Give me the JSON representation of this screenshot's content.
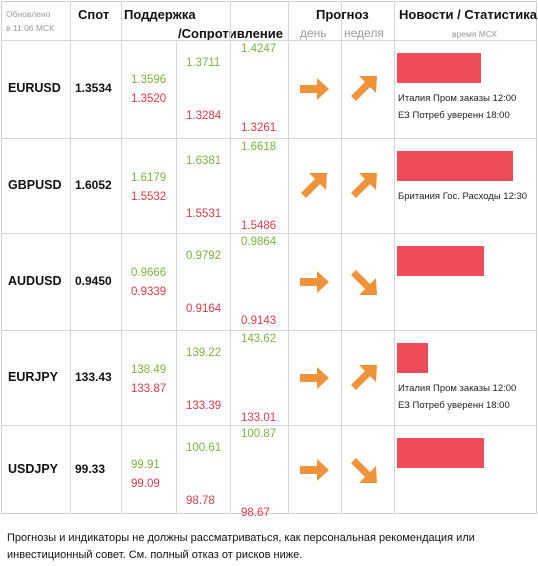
{
  "header": {
    "updated_label": "Обновлено",
    "updated_time": "в 11:06 МСК",
    "spot": "Спот",
    "support": "Поддержка",
    "resistance": "/Сопротивление",
    "forecast": "Прогноз",
    "day": "день",
    "week": "неделя",
    "news": "Новости / Статистика",
    "time_msk": "время МСК"
  },
  "colors": {
    "support": "#7cb342",
    "resistance": "#e53945",
    "arrow": "#f0923a",
    "bar": "#ef4c5a"
  },
  "rows": [
    {
      "pair": "EURUSD",
      "spot": "1.3534",
      "s1_top": "1.3596",
      "s1_bot": "1.3520",
      "s2_top": "1.3711",
      "s2_bot": "1.3284",
      "s3_top": "1.4247",
      "s3_bot": "1.3261",
      "day": "right-arrow-icon",
      "week": "up-right-arrow-icon",
      "news_level": 0.72,
      "news": [
        "Италия Пром заказы 12:00",
        "ЕЗ Потреб уверенн 18:00"
      ]
    },
    {
      "pair": "GBPUSD",
      "spot": "1.6052",
      "s1_top": "1.6179",
      "s1_bot": "1.5532",
      "s2_top": "1.6381",
      "s2_bot": "1.5531",
      "s3_top": "1.6618",
      "s3_bot": "1.5486",
      "day": "up-right-arrow-icon",
      "week": "up-right-arrow-icon",
      "news_level": 1.0,
      "news": [
        "Британия Гос. Расходы 12:30"
      ]
    },
    {
      "pair": "AUDUSD",
      "spot": "0.9450",
      "s1_top": "0.9666",
      "s1_bot": "0.9339",
      "s2_top": "0.9792",
      "s2_bot": "0.9164",
      "s3_top": "0.9864",
      "s3_bot": "0.9143",
      "day": "right-arrow-icon",
      "week": "down-right-arrow-icon",
      "news_level": 0.75,
      "news": []
    },
    {
      "pair": "EURJPY",
      "spot": "133.43",
      "s1_top": "138.49",
      "s1_bot": "133.87",
      "s2_top": "139.22",
      "s2_bot": "133.39",
      "s3_top": "143.62",
      "s3_bot": "133.01",
      "day": "right-arrow-icon",
      "week": "up-right-arrow-icon",
      "news_level": 0.27,
      "news": [
        "Италия Пром заказы 12:00",
        "ЕЗ Потреб уверенн 18:00"
      ]
    },
    {
      "pair": "USDJPY",
      "spot": "99.33",
      "s1_top": "99.91",
      "s1_bot": "99.09",
      "s2_top": "100.61",
      "s2_bot": "98.78",
      "s3_top": "100.87",
      "s3_bot": "98.67",
      "day": "right-arrow-icon",
      "week": "down-right-arrow-icon",
      "news_level": 0.75,
      "news": []
    }
  ],
  "footer": "Прогнозы и индикаторы не должны рассматриваться, как персональная рекомендация или инвестиционный совет. См. полный отказ от рисков ниже."
}
